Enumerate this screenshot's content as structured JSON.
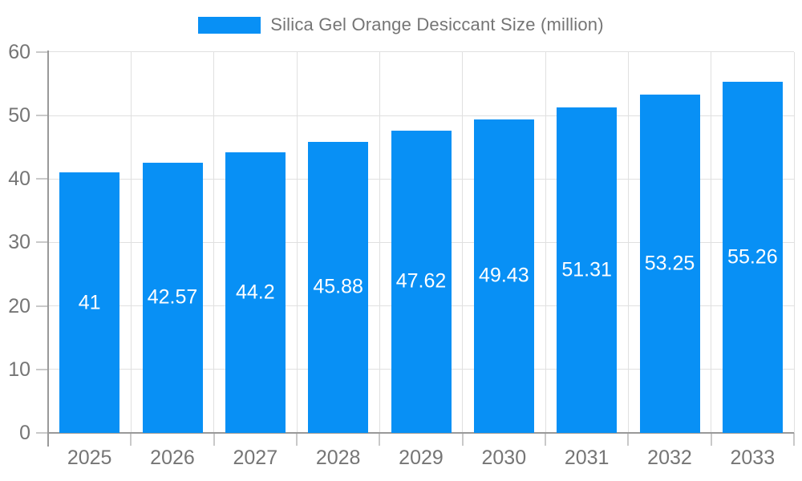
{
  "chart_data": {
    "type": "bar",
    "title": "Silica Gel Orange Desiccant Size (million)",
    "categories": [
      "2025",
      "2026",
      "2027",
      "2028",
      "2029",
      "2030",
      "2031",
      "2032",
      "2033"
    ],
    "series": [
      {
        "name": "Silica Gel Orange Desiccant Size (million)",
        "values": [
          41,
          42.57,
          44.2,
          45.88,
          47.62,
          49.43,
          51.31,
          53.25,
          55.26
        ]
      }
    ],
    "xlabel": "",
    "ylabel": "",
    "y_ticks": [
      0,
      10,
      20,
      30,
      40,
      50,
      60
    ],
    "ylim": [
      0,
      60
    ],
    "grid": true,
    "value_labels_position": "inside-center",
    "legend_position": "top-center",
    "colors": {
      "bar": "#0890f5",
      "axis": "#999999",
      "tick": "#c9c9c9",
      "grid": "#e0e0e0",
      "axis_label": "#757575",
      "legend_text": "#757575",
      "value_label": "#ffffff",
      "background": "#ffffff"
    }
  }
}
